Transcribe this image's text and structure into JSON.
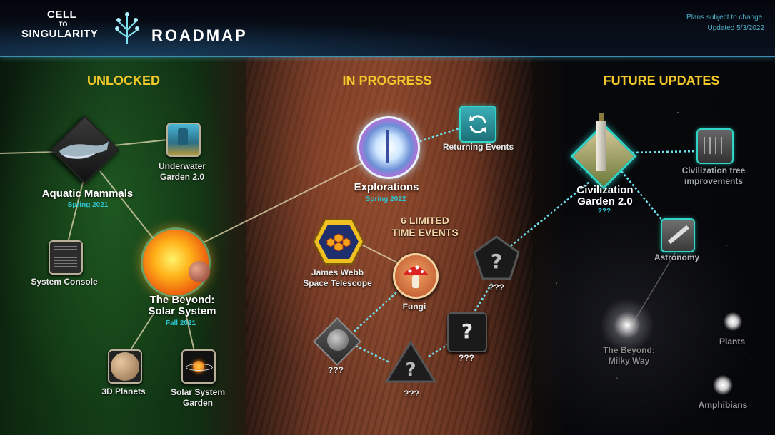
{
  "header": {
    "logo_line1": "CELL",
    "logo_line2": "TO",
    "logo_line3": "SINGULARITY",
    "title": "ROADMAP",
    "note_line1": "Plans subject to change.",
    "note_line2": "Updated 5/3/2022"
  },
  "sections": {
    "unlocked": "UNLOCKED",
    "in_progress": "IN PROGRESS",
    "future": "FUTURE UPDATES"
  },
  "unlocked": {
    "aquatic": {
      "label": "Aquatic Mammals",
      "date": "Spring 2021",
      "icon": "whale-icon"
    },
    "underwater": {
      "line1": "Underwater",
      "line2": "Garden 2.0",
      "icon": "coral-icon"
    },
    "console": {
      "label": "System Console",
      "icon": "terminal-icon"
    },
    "beyond": {
      "line1": "The Beyond:",
      "line2": "Solar System",
      "date": "Fall 2021",
      "icon": "sun-icon"
    },
    "planets": {
      "label": "3D Planets",
      "icon": "planet-icon"
    },
    "ssgarden": {
      "line1": "Solar System",
      "line2": "Garden",
      "icon": "orbit-icon"
    }
  },
  "in_progress": {
    "returning": {
      "label": "Returning Events",
      "icon": "refresh-icon"
    },
    "explorations": {
      "label": "Explorations",
      "date": "Spring 2022",
      "icon": "compass-icon"
    },
    "limited": {
      "line1": "6 LIMITED",
      "line2": "TIME EVENTS"
    },
    "jwst": {
      "line1": "James Webb",
      "line2": "Space Telescope",
      "icon": "telescope-mirror-icon"
    },
    "fungi": {
      "label": "Fungi",
      "icon": "mushroom-icon"
    },
    "unknown1": "???",
    "unknown2": "???",
    "unknown3": "???",
    "unknown4": "???",
    "q": "?"
  },
  "future": {
    "civ": {
      "line1": "Civilization",
      "line2": "Garden 2.0",
      "date": "???",
      "icon": "monument-icon"
    },
    "civtree": {
      "line1": "Civilization tree",
      "line2": "improvements",
      "icon": "tree-icon"
    },
    "astronomy": {
      "label": "Astronomy",
      "icon": "telescope-icon"
    },
    "milkyway": {
      "line1": "The Beyond:",
      "line2": "Milky Way",
      "icon": "galaxy-icon"
    },
    "plants": {
      "label": "Plants",
      "icon": "star-icon"
    },
    "amphibians": {
      "label": "Amphibians",
      "icon": "star-icon"
    }
  },
  "colors": {
    "accent_gold": "#f3c82a",
    "accent_teal": "#30d5c8",
    "date_teal": "#2fc4cf"
  }
}
